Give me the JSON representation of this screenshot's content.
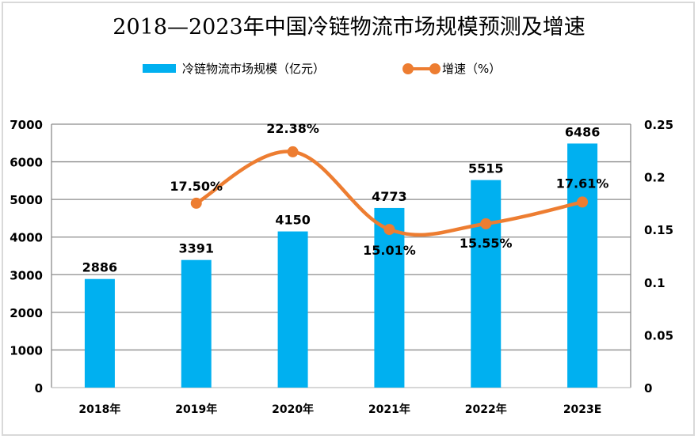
{
  "chart_data": {
    "type": "bar+line",
    "title": "2018—2023年中国冷链物流市场规模预测及增速",
    "categories": [
      "2018年",
      "2019年",
      "2020年",
      "2021年",
      "2022年",
      "2023E"
    ],
    "series": [
      {
        "name": "冷链物流市场规模（亿元）",
        "type": "bar",
        "axis": "left",
        "color": "#00b0f0",
        "values": [
          2886,
          3391,
          4150,
          4773,
          5515,
          6486
        ],
        "labels": [
          "2886",
          "3391",
          "4150",
          "4773",
          "5515",
          "6486"
        ]
      },
      {
        "name": "增速（%）",
        "type": "line",
        "axis": "right",
        "color": "#ed7d31",
        "smooth": true,
        "values": [
          null,
          0.175,
          0.2238,
          0.1501,
          0.1555,
          0.1761
        ],
        "labels": [
          null,
          "17.50%",
          "22.38%",
          "15.01%",
          "15.55%",
          "17.61%"
        ]
      }
    ],
    "y_left": {
      "range": [
        0,
        7000
      ],
      "ticks": [
        "0",
        "1000",
        "2000",
        "3000",
        "4000",
        "5000",
        "6000",
        "7000"
      ]
    },
    "y_right": {
      "range": [
        0,
        0.25
      ],
      "ticks": [
        "0",
        "0.05",
        "0.1",
        "0.15",
        "0.2",
        "0.25"
      ]
    },
    "grid": true,
    "legend_position": "top-center",
    "xlabel": "",
    "ylabel": ""
  }
}
